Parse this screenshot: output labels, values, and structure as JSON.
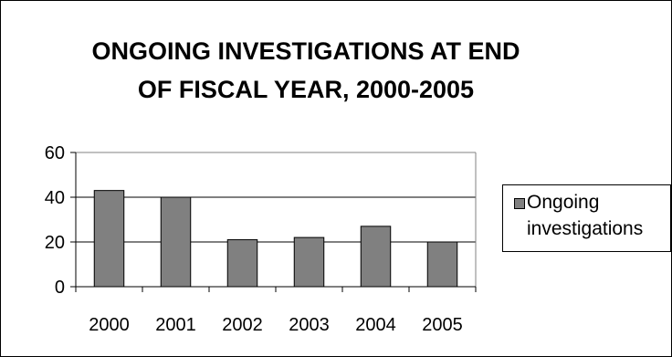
{
  "chart_data": {
    "type": "bar",
    "title": "ONGOING INVESTIGATIONS AT END OF FISCAL YEAR, 2000-2005",
    "title_lines": [
      "ONGOING INVESTIGATIONS AT END",
      "OF FISCAL YEAR, 2000-2005"
    ],
    "categories": [
      "2000",
      "2001",
      "2002",
      "2003",
      "2004",
      "2005"
    ],
    "series": [
      {
        "name": "Ongoing investigations",
        "values": [
          43,
          40,
          21,
          22,
          27,
          20
        ],
        "color": "#808080"
      }
    ],
    "ylim": [
      0,
      60
    ],
    "yticks": [
      0,
      20,
      40,
      60
    ],
    "grid": true,
    "legend_position": "right"
  }
}
